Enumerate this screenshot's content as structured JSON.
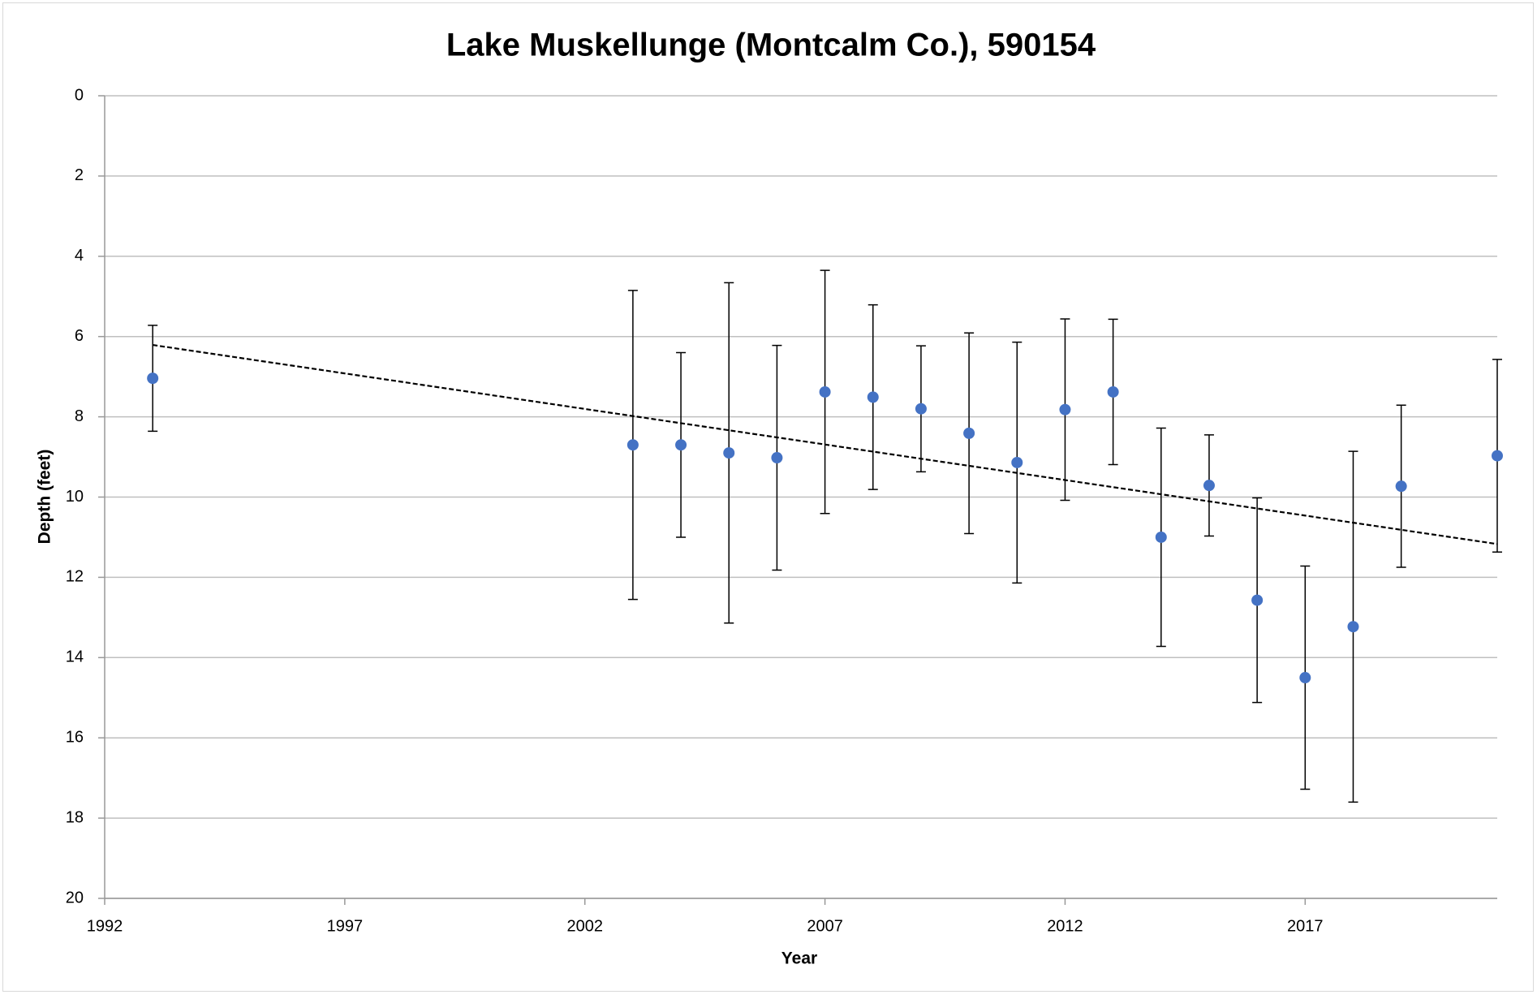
{
  "chart_data": {
    "type": "scatter",
    "title": "Lake Muskellunge (Montcalm Co.), 590154",
    "x_label": "Year",
    "y_label": "Depth (feet)",
    "xlim": [
      1992,
      2021
    ],
    "xticks": [
      1992,
      1997,
      2002,
      2007,
      2012,
      2017
    ],
    "ylim": [
      0,
      20
    ],
    "yticks": [
      0,
      2,
      4,
      6,
      8,
      10,
      12,
      14,
      16,
      18,
      20
    ],
    "y_inverted": true,
    "grid": true,
    "series": [
      {
        "color": "#4472c4",
        "x": [
          1993,
          2003,
          2004,
          2005,
          2006,
          2007,
          2008,
          2009,
          2010,
          2011,
          2012,
          2013,
          2014,
          2015,
          2016,
          2017,
          2018,
          2019,
          2021
        ],
        "values": [
          7.04,
          8.7,
          8.7,
          8.9,
          9.02,
          7.38,
          7.51,
          7.8,
          8.41,
          9.14,
          7.82,
          7.38,
          11.0,
          9.71,
          12.57,
          14.5,
          13.23,
          9.73,
          8.97
        ],
        "errors": [
          1.32,
          3.85,
          2.3,
          4.24,
          2.8,
          3.03,
          2.3,
          1.57,
          2.5,
          3.0,
          2.26,
          1.81,
          2.72,
          1.26,
          2.55,
          2.78,
          4.37,
          2.02,
          2.4
        ]
      }
    ],
    "trendline": {
      "x": [
        1993,
        2021
      ],
      "values": [
        6.21,
        11.17
      ],
      "color": "#000000"
    }
  }
}
